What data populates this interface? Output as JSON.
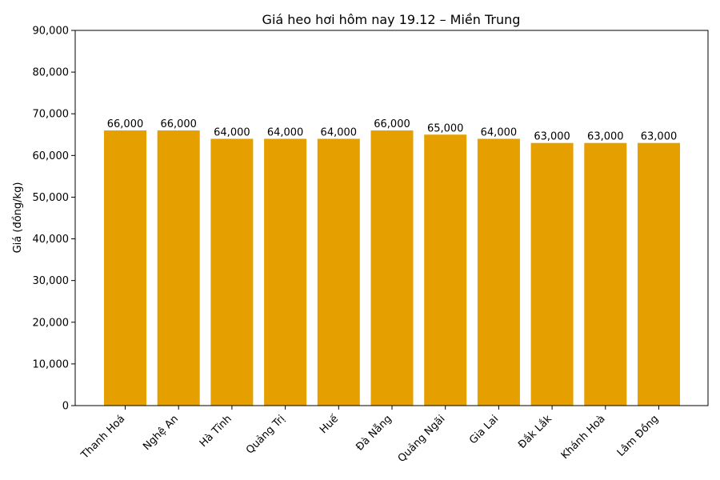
{
  "chart_data": {
    "type": "bar",
    "title": "Giá heo hơi hôm nay 19.12 – Miền Trung",
    "xlabel": "",
    "ylabel": "Giá (đồng/kg)",
    "categories": [
      "Thanh Hoá",
      "Nghệ An",
      "Hà Tĩnh",
      "Quảng Trị",
      "Huế",
      "Đà Nẵng",
      "Quảng Ngãi",
      "Gia Lai",
      "Đắk Lắk",
      "Khánh Hoà",
      "Lâm Đồng"
    ],
    "values": [
      66000,
      66000,
      64000,
      64000,
      64000,
      66000,
      65000,
      64000,
      63000,
      63000,
      63000
    ],
    "data_labels": [
      "66,000",
      "66,000",
      "64,000",
      "64,000",
      "64,000",
      "66,000",
      "65,000",
      "64,000",
      "63,000",
      "63,000",
      "63,000"
    ],
    "ylim": [
      0,
      90000
    ],
    "yticks": [
      0,
      10000,
      20000,
      30000,
      40000,
      50000,
      60000,
      70000,
      80000,
      90000
    ],
    "ytick_labels": [
      "0",
      "10,000",
      "20,000",
      "30,000",
      "40,000",
      "50,000",
      "60,000",
      "70,000",
      "80,000",
      "90,000"
    ],
    "grid": false,
    "bar_color": "#E5A000"
  }
}
